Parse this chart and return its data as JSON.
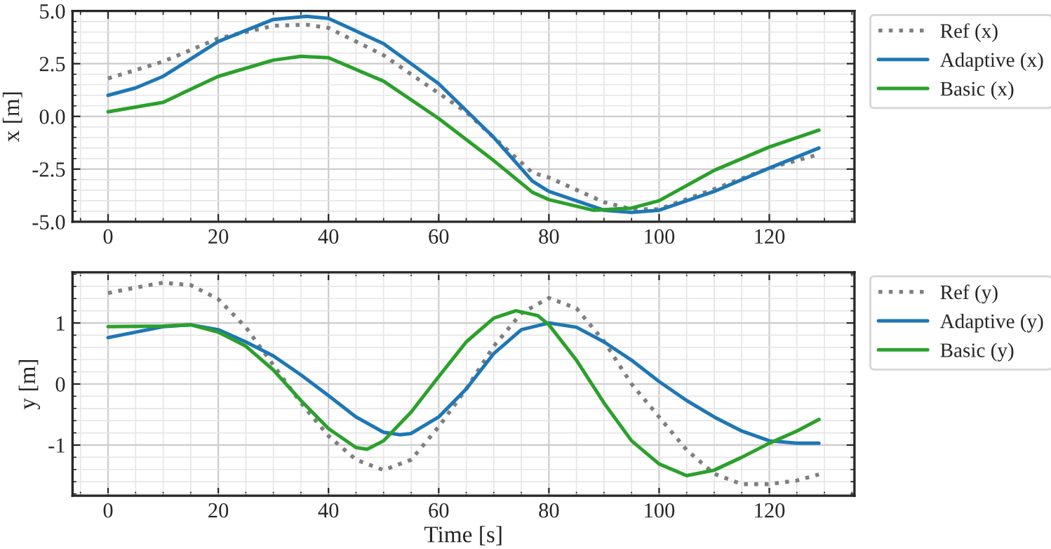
{
  "chart_data": [
    {
      "type": "line",
      "ylabel": "x [m]",
      "xlim": [
        -6.45,
        135.45
      ],
      "xticks": [
        0,
        20,
        40,
        60,
        80,
        100,
        120
      ],
      "ylim": [
        -5.0,
        5.0
      ],
      "yticks": [
        {
          "value": -5,
          "label": "-5.0"
        },
        {
          "value": -2.5,
          "label": "-2.5"
        },
        {
          "value": 0,
          "label": "0.0"
        },
        {
          "value": 2.5,
          "label": "2.5"
        },
        {
          "value": 5,
          "label": "5.0"
        }
      ],
      "grid": true,
      "legend": "right",
      "marker": "none",
      "series": [
        {
          "name": "Ref (x)",
          "color": "#7f7f7f",
          "line_style": "dotted",
          "x": [
            0,
            10,
            20,
            30,
            36,
            40,
            50,
            60,
            65,
            70,
            77,
            80,
            90,
            95,
            100,
            110,
            120,
            129
          ],
          "values": [
            1.8,
            2.6,
            3.7,
            4.3,
            4.35,
            4.2,
            2.9,
            1.1,
            0.2,
            -1.0,
            -2.67,
            -2.9,
            -4.07,
            -4.4,
            -4.4,
            -3.45,
            -2.45,
            -1.8
          ]
        },
        {
          "name": "Adaptive (x)",
          "color": "#1f77b4",
          "line_style": "solid",
          "x": [
            0,
            5,
            10,
            20,
            30,
            36,
            40,
            50,
            60,
            70,
            77,
            80,
            90,
            95,
            100,
            110,
            120,
            129
          ],
          "values": [
            1.0,
            1.35,
            1.9,
            3.55,
            4.6,
            4.75,
            4.65,
            3.45,
            1.55,
            -1.0,
            -3.07,
            -3.56,
            -4.45,
            -4.55,
            -4.45,
            -3.56,
            -2.45,
            -1.5
          ]
        },
        {
          "name": "Basic (x)",
          "color": "#2ca02c",
          "line_style": "solid",
          "x": [
            0,
            10,
            20,
            30,
            35,
            40,
            50,
            60,
            70,
            77,
            80,
            88,
            95,
            100,
            110,
            120,
            129
          ],
          "values": [
            0.22,
            0.67,
            1.9,
            2.67,
            2.85,
            2.78,
            1.67,
            -0.1,
            -2.1,
            -3.6,
            -3.95,
            -4.45,
            -4.35,
            -4.0,
            -2.56,
            -1.45,
            -0.65
          ]
        }
      ]
    },
    {
      "type": "line",
      "xlabel": "Time [s]",
      "ylabel": "y [m]",
      "xlim": [
        -6.45,
        135.45
      ],
      "xticks": [
        0,
        20,
        40,
        60,
        80,
        100,
        120
      ],
      "ylim": [
        -1.83,
        1.83
      ],
      "yticks": [
        -1,
        0,
        1
      ],
      "grid": true,
      "legend": "right",
      "marker": "none",
      "series": [
        {
          "name": "Ref (y)",
          "color": "#7f7f7f",
          "line_style": "dotted",
          "x": [
            0,
            5,
            10,
            15,
            20,
            25,
            30,
            35,
            40,
            45,
            50,
            55,
            60,
            65,
            70,
            75,
            80,
            85,
            90,
            95,
            100,
            105,
            110,
            115,
            120,
            125,
            129
          ],
          "values": [
            1.49,
            1.58,
            1.66,
            1.62,
            1.39,
            0.93,
            0.31,
            -0.31,
            -0.85,
            -1.24,
            -1.41,
            -1.24,
            -0.7,
            -0.08,
            0.62,
            1.16,
            1.41,
            1.24,
            0.7,
            0.0,
            -0.54,
            -1.08,
            -1.47,
            -1.64,
            -1.64,
            -1.58,
            -1.48
          ]
        },
        {
          "name": "Adaptive (y)",
          "color": "#1f77b4",
          "line_style": "solid",
          "x": [
            0,
            5,
            10,
            15,
            20,
            25,
            30,
            35,
            40,
            45,
            50,
            53,
            55,
            60,
            65,
            70,
            75,
            80,
            85,
            90,
            95,
            100,
            105,
            110,
            115,
            120,
            125,
            129
          ],
          "values": [
            0.76,
            0.85,
            0.94,
            0.97,
            0.89,
            0.69,
            0.46,
            0.15,
            -0.19,
            -0.54,
            -0.79,
            -0.83,
            -0.81,
            -0.54,
            -0.08,
            0.5,
            0.89,
            1.0,
            0.93,
            0.69,
            0.39,
            0.04,
            -0.27,
            -0.54,
            -0.77,
            -0.93,
            -0.97,
            -0.97
          ]
        },
        {
          "name": "Basic (y)",
          "color": "#2ca02c",
          "line_style": "solid",
          "x": [
            0,
            10,
            15,
            20,
            25,
            30,
            35,
            40,
            45,
            47,
            50,
            55,
            60,
            65,
            70,
            74,
            78,
            80,
            85,
            90,
            95,
            100,
            105,
            110,
            115,
            120,
            125,
            129
          ],
          "values": [
            0.94,
            0.95,
            0.97,
            0.85,
            0.62,
            0.23,
            -0.27,
            -0.73,
            -1.04,
            -1.07,
            -0.93,
            -0.46,
            0.12,
            0.69,
            1.08,
            1.2,
            1.12,
            0.97,
            0.39,
            -0.31,
            -0.93,
            -1.31,
            -1.5,
            -1.41,
            -1.2,
            -0.97,
            -0.77,
            -0.58
          ]
        }
      ]
    }
  ]
}
